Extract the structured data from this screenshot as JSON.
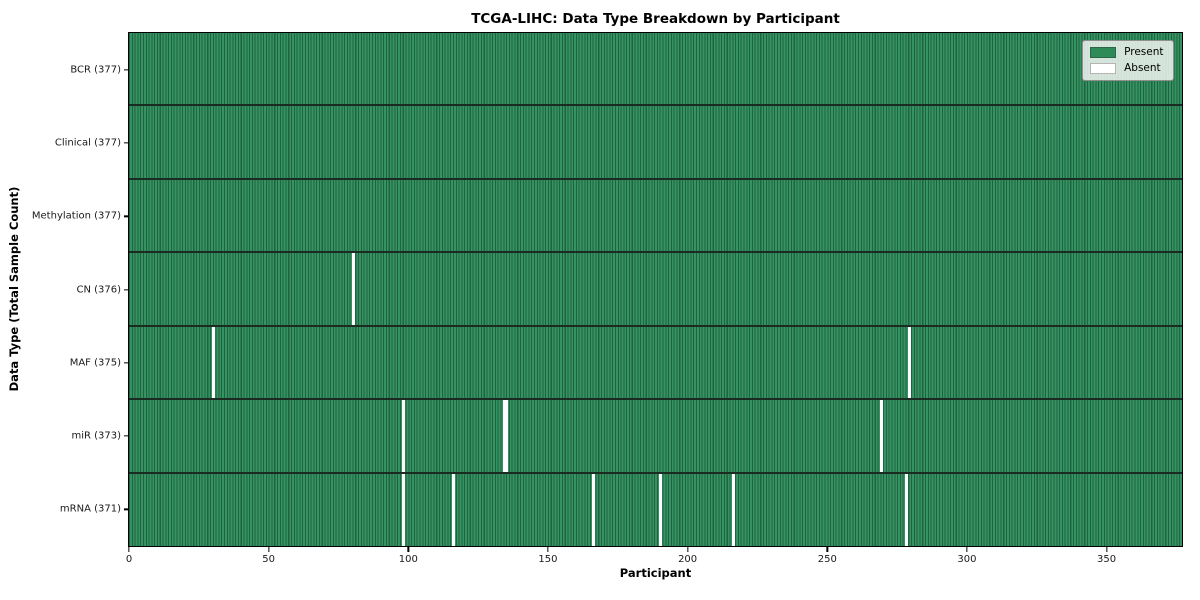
{
  "colors": {
    "present": "#2e8b57",
    "present_stripe_light": "#359362",
    "present_stripe_dark": "#1f6340",
    "absent": "#ffffff",
    "row_separator": "#1c2b22",
    "legend_background": "#edf1ed",
    "axis": "#000000"
  },
  "chart_data": {
    "type": "heatmap",
    "title": "TCGA-LIHC: Data Type Breakdown by Participant",
    "xlabel": "Participant",
    "ylabel": "Data Type (Total Sample Count)",
    "x_ticks": [
      0,
      50,
      100,
      150,
      200,
      250,
      300,
      350
    ],
    "x_range": [
      0,
      377
    ],
    "n_participants": 377,
    "grid": false,
    "legend_position": "upper right",
    "legend": [
      "Present",
      "Absent"
    ],
    "rows": [
      {
        "data_type": "BCR",
        "label": "BCR (377)",
        "present_count": 377,
        "absent_participants": []
      },
      {
        "data_type": "Clinical",
        "label": "Clinical (377)",
        "present_count": 377,
        "absent_participants": []
      },
      {
        "data_type": "Methylation",
        "label": "Methylation (377)",
        "present_count": 377,
        "absent_participants": []
      },
      {
        "data_type": "CN",
        "label": "CN (376)",
        "present_count": 376,
        "absent_participants": [
          80
        ]
      },
      {
        "data_type": "MAF",
        "label": "MAF (375)",
        "present_count": 375,
        "absent_participants": [
          30,
          279
        ]
      },
      {
        "data_type": "miR",
        "label": "miR (373)",
        "present_count": 373,
        "absent_participants": [
          98,
          134,
          135,
          269
        ]
      },
      {
        "data_type": "mRNA",
        "label": "mRNA (371)",
        "present_count": 371,
        "absent_participants": [
          98,
          116,
          166,
          190,
          216,
          278
        ]
      }
    ]
  }
}
